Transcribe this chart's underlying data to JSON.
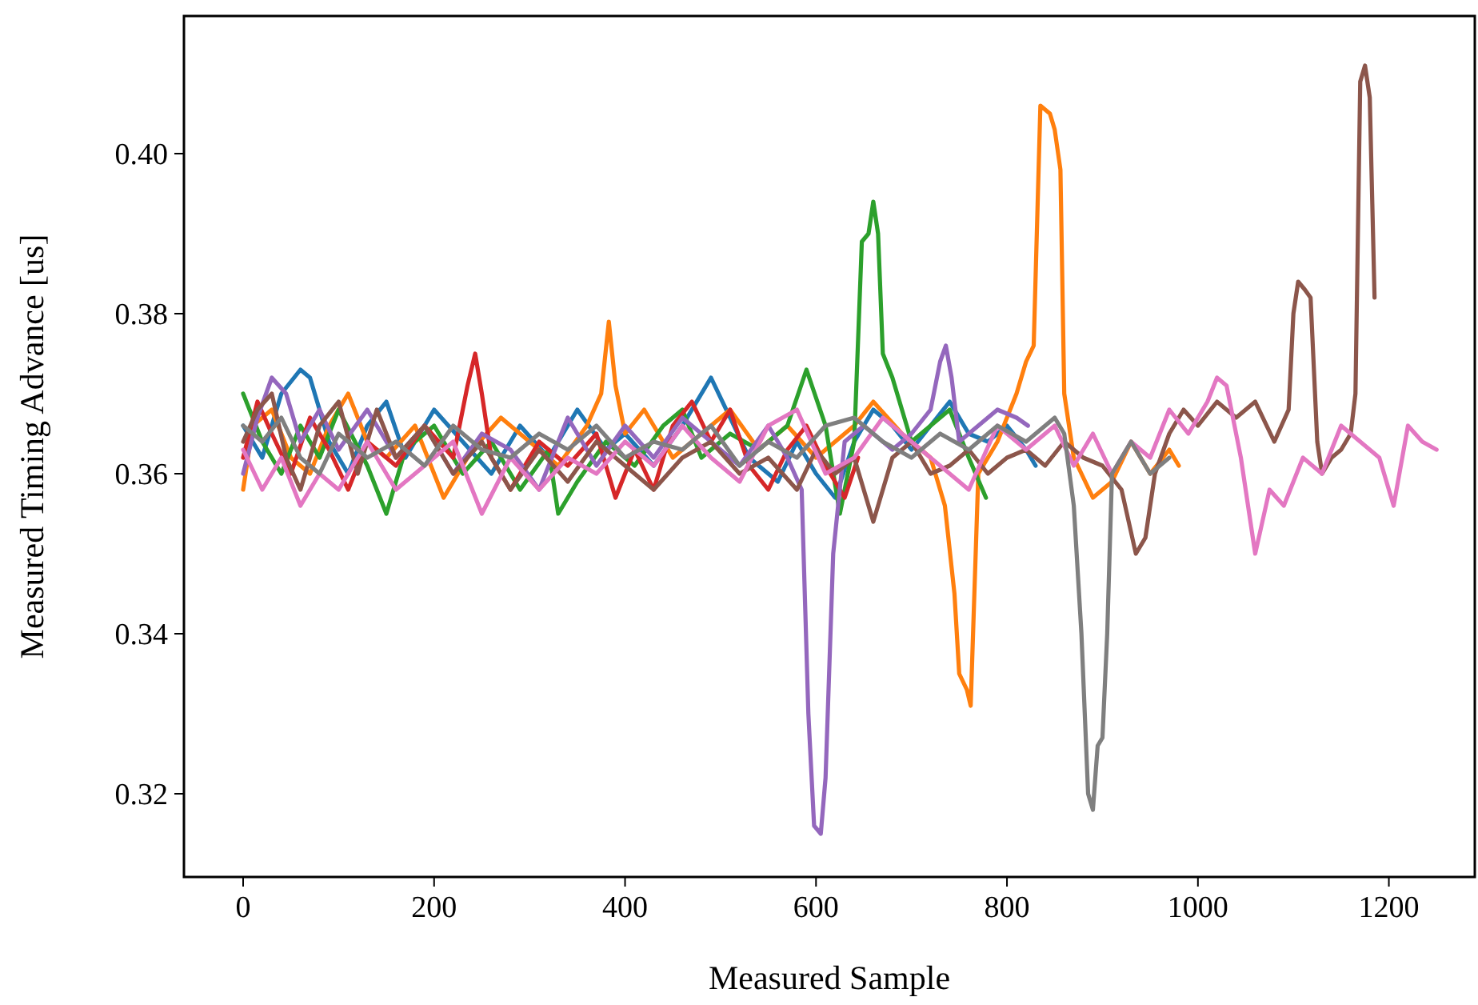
{
  "chart_data": {
    "type": "line",
    "xlabel": "Measured Sample",
    "ylabel": "Measured Timing Advance [us]",
    "xlim": [
      -62,
      1290
    ],
    "ylim": [
      0.3096,
      0.4172
    ],
    "xticks": [
      0,
      200,
      400,
      600,
      800,
      1000,
      1200
    ],
    "yticks": [
      {
        "value": 0.32,
        "label": "0.32"
      },
      {
        "value": 0.34,
        "label": "0.34"
      },
      {
        "value": 0.36,
        "label": "0.36"
      },
      {
        "value": 0.38,
        "label": "0.38"
      },
      {
        "value": 0.4,
        "label": "0.40"
      }
    ],
    "grid": false,
    "line_style": "solid",
    "marker": "none",
    "series": [
      {
        "color": "#1f77b4",
        "x": [
          0,
          20,
          40,
          60,
          70,
          90,
          110,
          130,
          150,
          170,
          200,
          230,
          260,
          290,
          320,
          350,
          380,
          400,
          430,
          460,
          490,
          510,
          530,
          560,
          580,
          600,
          620,
          640,
          660,
          680,
          700,
          720,
          740,
          760,
          780,
          800,
          820,
          830
        ],
        "values": [
          0.366,
          0.362,
          0.37,
          0.373,
          0.372,
          0.364,
          0.36,
          0.366,
          0.369,
          0.362,
          0.368,
          0.364,
          0.36,
          0.366,
          0.362,
          0.368,
          0.363,
          0.365,
          0.361,
          0.366,
          0.372,
          0.367,
          0.362,
          0.359,
          0.364,
          0.36,
          0.357,
          0.364,
          0.368,
          0.366,
          0.363,
          0.366,
          0.369,
          0.365,
          0.364,
          0.366,
          0.363,
          0.361
        ]
      },
      {
        "color": "#ff7f0e",
        "x": [
          0,
          10,
          30,
          50,
          70,
          90,
          110,
          130,
          150,
          180,
          210,
          240,
          270,
          300,
          330,
          360,
          375,
          383,
          390,
          400,
          420,
          450,
          480,
          510,
          540,
          570,
          600,
          620,
          640,
          660,
          690,
          720,
          735,
          745,
          750,
          758,
          762,
          770,
          790,
          810,
          820,
          828,
          835,
          845,
          850,
          856,
          860,
          870,
          890,
          910,
          930,
          950,
          970,
          980
        ],
        "values": [
          0.358,
          0.366,
          0.368,
          0.362,
          0.36,
          0.366,
          0.37,
          0.364,
          0.362,
          0.366,
          0.357,
          0.363,
          0.367,
          0.364,
          0.361,
          0.366,
          0.37,
          0.379,
          0.371,
          0.365,
          0.368,
          0.362,
          0.365,
          0.368,
          0.363,
          0.366,
          0.362,
          0.364,
          0.366,
          0.369,
          0.365,
          0.362,
          0.356,
          0.345,
          0.335,
          0.333,
          0.331,
          0.36,
          0.364,
          0.37,
          0.374,
          0.376,
          0.406,
          0.405,
          0.403,
          0.398,
          0.37,
          0.362,
          0.357,
          0.359,
          0.364,
          0.36,
          0.363,
          0.361
        ]
      },
      {
        "color": "#2ca02c",
        "x": [
          0,
          20,
          40,
          60,
          80,
          100,
          130,
          150,
          170,
          200,
          230,
          260,
          290,
          320,
          330,
          350,
          380,
          410,
          440,
          460,
          480,
          510,
          540,
          570,
          590,
          610,
          625,
          640,
          648,
          655,
          660,
          665,
          670,
          680,
          690,
          700,
          720,
          740,
          760,
          778
        ],
        "values": [
          0.37,
          0.364,
          0.36,
          0.366,
          0.362,
          0.368,
          0.361,
          0.355,
          0.363,
          0.366,
          0.36,
          0.364,
          0.358,
          0.363,
          0.355,
          0.359,
          0.364,
          0.361,
          0.366,
          0.368,
          0.362,
          0.365,
          0.363,
          0.366,
          0.373,
          0.366,
          0.355,
          0.364,
          0.389,
          0.39,
          0.394,
          0.39,
          0.375,
          0.372,
          0.368,
          0.364,
          0.366,
          0.368,
          0.362,
          0.357
        ]
      },
      {
        "color": "#d62728",
        "x": [
          0,
          15,
          30,
          50,
          70,
          90,
          110,
          130,
          160,
          190,
          220,
          235,
          243,
          250,
          260,
          280,
          310,
          340,
          370,
          390,
          410,
          430,
          450,
          470,
          490,
          510,
          530,
          550,
          570,
          590,
          610,
          630,
          644
        ],
        "values": [
          0.362,
          0.369,
          0.365,
          0.36,
          0.367,
          0.363,
          0.358,
          0.364,
          0.361,
          0.366,
          0.362,
          0.371,
          0.375,
          0.37,
          0.362,
          0.358,
          0.364,
          0.361,
          0.365,
          0.357,
          0.363,
          0.358,
          0.366,
          0.369,
          0.364,
          0.368,
          0.361,
          0.358,
          0.363,
          0.366,
          0.361,
          0.357,
          0.362
        ]
      },
      {
        "color": "#9467bd",
        "x": [
          0,
          15,
          30,
          45,
          60,
          80,
          100,
          130,
          160,
          190,
          220,
          250,
          280,
          310,
          340,
          370,
          400,
          430,
          460,
          490,
          520,
          550,
          570,
          585,
          592,
          598,
          605,
          610,
          618,
          630,
          650,
          680,
          700,
          720,
          730,
          736,
          742,
          750,
          770,
          790,
          810,
          822
        ],
        "values": [
          0.36,
          0.367,
          0.372,
          0.37,
          0.364,
          0.368,
          0.363,
          0.368,
          0.362,
          0.366,
          0.36,
          0.365,
          0.363,
          0.358,
          0.367,
          0.361,
          0.366,
          0.362,
          0.367,
          0.364,
          0.361,
          0.366,
          0.362,
          0.358,
          0.33,
          0.316,
          0.315,
          0.322,
          0.35,
          0.364,
          0.366,
          0.363,
          0.365,
          0.368,
          0.374,
          0.376,
          0.372,
          0.364,
          0.366,
          0.368,
          0.367,
          0.366
        ]
      },
      {
        "color": "#8c564b",
        "x": [
          0,
          15,
          30,
          45,
          60,
          80,
          100,
          120,
          140,
          160,
          190,
          220,
          250,
          280,
          310,
          340,
          370,
          400,
          430,
          460,
          490,
          520,
          550,
          580,
          600,
          620,
          640,
          660,
          680,
          700,
          720,
          740,
          760,
          780,
          800,
          820,
          840,
          860,
          880,
          900,
          920,
          935,
          945,
          955,
          970,
          985,
          1000,
          1020,
          1040,
          1060,
          1080,
          1095,
          1100,
          1105,
          1112,
          1118,
          1125,
          1130,
          1140,
          1150,
          1160,
          1165,
          1170,
          1175,
          1180,
          1185
        ],
        "values": [
          0.364,
          0.368,
          0.37,
          0.362,
          0.358,
          0.366,
          0.369,
          0.36,
          0.368,
          0.362,
          0.366,
          0.36,
          0.364,
          0.358,
          0.363,
          0.359,
          0.364,
          0.361,
          0.358,
          0.362,
          0.364,
          0.36,
          0.362,
          0.358,
          0.363,
          0.36,
          0.362,
          0.354,
          0.362,
          0.364,
          0.36,
          0.361,
          0.363,
          0.36,
          0.362,
          0.363,
          0.361,
          0.364,
          0.362,
          0.361,
          0.358,
          0.35,
          0.352,
          0.36,
          0.365,
          0.368,
          0.366,
          0.369,
          0.367,
          0.369,
          0.364,
          0.368,
          0.38,
          0.384,
          0.383,
          0.382,
          0.364,
          0.36,
          0.362,
          0.363,
          0.365,
          0.37,
          0.409,
          0.411,
          0.407,
          0.382
        ]
      },
      {
        "color": "#e377c2",
        "x": [
          0,
          20,
          40,
          60,
          80,
          100,
          130,
          160,
          190,
          220,
          250,
          280,
          310,
          340,
          370,
          400,
          430,
          460,
          490,
          520,
          550,
          580,
          610,
          640,
          670,
          700,
          730,
          760,
          790,
          820,
          850,
          870,
          890,
          910,
          930,
          950,
          970,
          990,
          1010,
          1020,
          1030,
          1045,
          1060,
          1075,
          1090,
          1110,
          1130,
          1150,
          1170,
          1190,
          1205,
          1220,
          1235,
          1250
        ],
        "values": [
          0.363,
          0.358,
          0.362,
          0.356,
          0.36,
          0.358,
          0.364,
          0.358,
          0.361,
          0.364,
          0.355,
          0.362,
          0.358,
          0.362,
          0.36,
          0.364,
          0.361,
          0.366,
          0.362,
          0.359,
          0.366,
          0.368,
          0.36,
          0.362,
          0.367,
          0.364,
          0.361,
          0.358,
          0.366,
          0.363,
          0.366,
          0.361,
          0.365,
          0.36,
          0.364,
          0.362,
          0.368,
          0.365,
          0.369,
          0.372,
          0.371,
          0.362,
          0.35,
          0.358,
          0.356,
          0.362,
          0.36,
          0.366,
          0.364,
          0.362,
          0.356,
          0.366,
          0.364,
          0.363
        ]
      },
      {
        "color": "#7f7f7f",
        "x": [
          0,
          20,
          40,
          60,
          80,
          100,
          130,
          160,
          190,
          220,
          250,
          280,
          310,
          340,
          370,
          400,
          430,
          460,
          490,
          520,
          550,
          580,
          610,
          640,
          670,
          700,
          730,
          760,
          790,
          820,
          850,
          860,
          870,
          878,
          885,
          890,
          895,
          900,
          905,
          910,
          930,
          950,
          970
        ],
        "values": [
          0.366,
          0.364,
          0.367,
          0.362,
          0.36,
          0.365,
          0.362,
          0.364,
          0.361,
          0.366,
          0.363,
          0.362,
          0.365,
          0.363,
          0.366,
          0.362,
          0.364,
          0.363,
          0.366,
          0.361,
          0.364,
          0.362,
          0.366,
          0.367,
          0.364,
          0.362,
          0.365,
          0.363,
          0.366,
          0.364,
          0.367,
          0.365,
          0.356,
          0.34,
          0.32,
          0.318,
          0.326,
          0.327,
          0.34,
          0.36,
          0.364,
          0.36,
          0.362
        ]
      }
    ]
  }
}
